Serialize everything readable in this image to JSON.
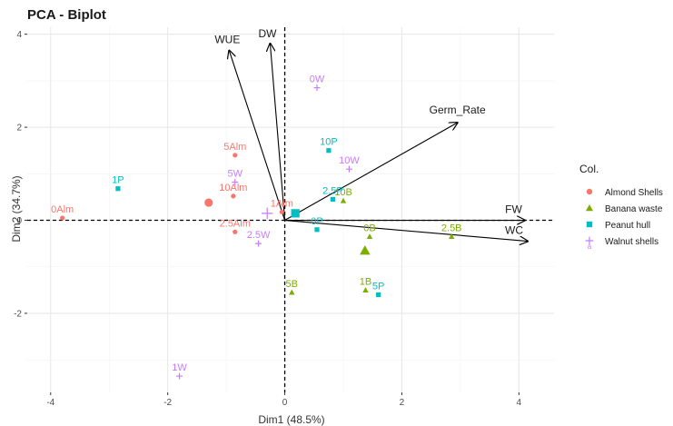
{
  "chart_data": {
    "type": "scatter",
    "title": "PCA - Biplot",
    "xlabel": "Dim1 (48.5%)",
    "ylabel": "Dim2 (34.7%)",
    "xlim": [
      -4.4,
      4.6
    ],
    "ylim": [
      -3.7,
      4.15
    ],
    "xticks": [
      -4,
      -2,
      0,
      2,
      4
    ],
    "yticks": [
      -2,
      0,
      2,
      4
    ],
    "grid": true,
    "legend": {
      "title": "Col.",
      "position": "right",
      "entries": [
        {
          "label": "Almond Shells",
          "color": "#f8766d",
          "shape": "circle"
        },
        {
          "label": "Banana waste",
          "color": "#7cae00",
          "shape": "triangle"
        },
        {
          "label": "Peanut hull",
          "color": "#00bfc4",
          "shape": "square"
        },
        {
          "label": "Walnut shells",
          "color": "#c77cff",
          "shape": "cross"
        }
      ]
    },
    "series": [
      {
        "name": "Almond Shells",
        "color": "#f8766d",
        "shape": "circle",
        "points": [
          {
            "label": "0Alm",
            "x": -3.8,
            "y": 0.05
          },
          {
            "label": "5Alm",
            "x": -0.85,
            "y": 1.4
          },
          {
            "label": "10Alm",
            "x": -0.88,
            "y": 0.52
          },
          {
            "label": "2.5Alm",
            "x": -0.85,
            "y": -0.25
          },
          {
            "label": "1Alm",
            "x": -0.05,
            "y": 0.18
          }
        ],
        "centroid": {
          "x": -1.3,
          "y": 0.38
        }
      },
      {
        "name": "Banana waste",
        "color": "#7cae00",
        "shape": "triangle",
        "points": [
          {
            "label": "2.5B",
            "x": 2.85,
            "y": -0.35
          },
          {
            "label": "0B",
            "x": 1.45,
            "y": -0.35
          },
          {
            "label": "5B",
            "x": 0.12,
            "y": -1.55
          },
          {
            "label": "1B",
            "x": 1.38,
            "y": -1.5
          },
          {
            "label": "10B",
            "x": 1.0,
            "y": 0.42
          }
        ],
        "centroid": {
          "x": 1.37,
          "y": -0.65
        }
      },
      {
        "name": "Peanut hull",
        "color": "#00bfc4",
        "shape": "square",
        "points": [
          {
            "label": "1P",
            "x": -2.85,
            "y": 0.68
          },
          {
            "label": "10P",
            "x": 0.75,
            "y": 1.5
          },
          {
            "label": "2.5P",
            "x": 0.82,
            "y": 0.45
          },
          {
            "label": "0P",
            "x": 0.55,
            "y": -0.2
          },
          {
            "label": "5P",
            "x": 1.6,
            "y": -1.6
          }
        ],
        "centroid": {
          "x": 0.18,
          "y": 0.15
        }
      },
      {
        "name": "Walnut shells",
        "color": "#c77cff",
        "shape": "cross",
        "points": [
          {
            "label": "0W",
            "x": 0.55,
            "y": 2.85
          },
          {
            "label": "10W",
            "x": 1.1,
            "y": 1.1
          },
          {
            "label": "5W",
            "x": -0.85,
            "y": 0.82
          },
          {
            "label": "2.5W",
            "x": -0.45,
            "y": -0.5
          },
          {
            "label": "1W",
            "x": -1.8,
            "y": -3.35
          }
        ],
        "centroid": {
          "x": -0.3,
          "y": 0.15
        }
      }
    ],
    "variables": [
      {
        "label": "WUE",
        "x": -0.95,
        "y": 3.65
      },
      {
        "label": "DW",
        "x": -0.25,
        "y": 3.8
      },
      {
        "label": "Germ_Rate",
        "x": 2.95,
        "y": 2.1
      },
      {
        "label": "FW",
        "x": 4.1,
        "y": 0.0
      },
      {
        "label": "WC",
        "x": 4.15,
        "y": -0.45
      }
    ]
  }
}
